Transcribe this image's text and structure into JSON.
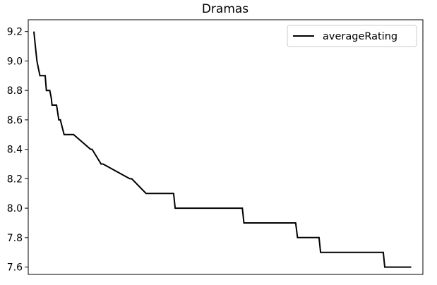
{
  "chart_data": {
    "type": "line",
    "title": "Dramas",
    "xlabel": "",
    "ylabel": "",
    "legend": {
      "position": "top-right",
      "entries": [
        "averageRating"
      ]
    },
    "grid": false,
    "x_ticks_visible": false,
    "xlim": [
      0,
      100
    ],
    "ylim": [
      7.55,
      9.28
    ],
    "yticks": [
      7.6,
      7.8,
      8.0,
      8.2,
      8.4,
      8.6,
      8.8,
      9.0,
      9.2
    ],
    "ytick_labels": [
      "7.6",
      "7.8",
      "8.0",
      "8.2",
      "8.4",
      "8.6",
      "8.8",
      "9.0",
      "9.2"
    ],
    "series": [
      {
        "name": "averageRating",
        "color": "#000000",
        "x": [
          0.0,
          0.4,
          0.8,
          1.2,
          1.6,
          2.0,
          2.5,
          3.0,
          3.3,
          3.8,
          4.2,
          4.6,
          4.8,
          5.0,
          5.6,
          6.0,
          6.6,
          7.0,
          7.5,
          8.0,
          8.5,
          9.0,
          9.8,
          10.5,
          15.0,
          15.4,
          17.8,
          18.3,
          25.4,
          25.9,
          29.7,
          30.2,
          37.0,
          37.4,
          47.1,
          47.6,
          55.2,
          55.6,
          69.3,
          69.8,
          75.5,
          75.9,
          84.6,
          85.0,
          92.5,
          92.9,
          99.9
        ],
        "y": [
          9.2,
          9.1,
          9.0,
          8.95,
          8.9,
          8.9,
          8.9,
          8.9,
          8.8,
          8.8,
          8.8,
          8.75,
          8.7,
          8.7,
          8.7,
          8.7,
          8.6,
          8.6,
          8.55,
          8.5,
          8.5,
          8.5,
          8.5,
          8.5,
          8.4,
          8.4,
          8.3,
          8.3,
          8.2,
          8.2,
          8.1,
          8.1,
          8.1,
          8.0,
          8.0,
          8.0,
          8.0,
          7.9,
          7.9,
          7.8,
          7.8,
          7.7,
          7.7,
          7.7,
          7.7,
          7.6,
          7.6
        ]
      }
    ]
  }
}
